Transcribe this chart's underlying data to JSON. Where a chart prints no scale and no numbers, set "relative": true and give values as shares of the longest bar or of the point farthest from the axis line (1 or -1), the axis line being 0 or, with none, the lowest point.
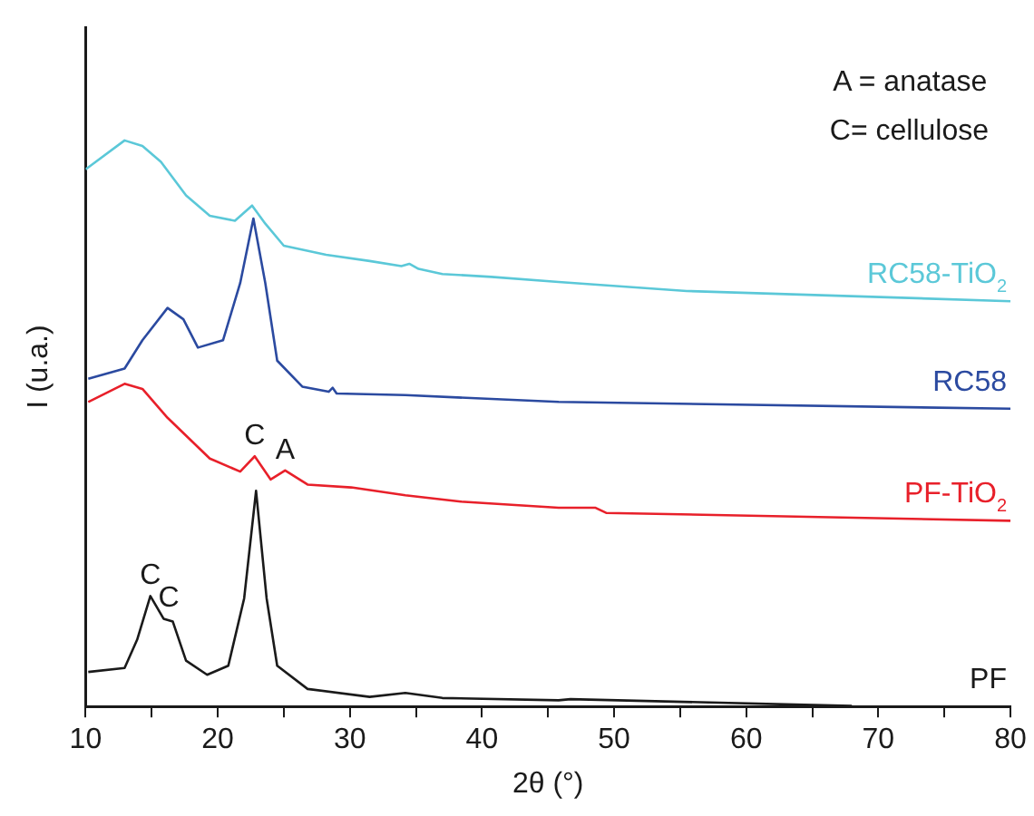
{
  "chart_data": {
    "type": "line",
    "relative": true,
    "xlabel": "2θ (°)",
    "ylabel": "I (u.a.)",
    "xlim": [
      10,
      80
    ],
    "xticks": [
      10,
      {
        "value": 15,
        "label": null
      },
      20,
      {
        "value": 25,
        "label": null
      },
      30,
      {
        "value": 35,
        "label": null
      },
      40,
      {
        "value": 45,
        "label": null
      },
      50,
      {
        "value": 55,
        "label": null
      },
      60,
      {
        "value": 65,
        "label": null
      },
      70,
      {
        "value": 75,
        "label": null
      },
      80
    ],
    "grid": false,
    "legend": false,
    "marker": "none",
    "line_style": "solid",
    "series": [
      {
        "name": "RC58-TiO$_{2}$",
        "color": "#5bc8d8",
        "x": [
          10,
          12.95,
          14.3,
          15.7,
          17.6,
          19.4,
          21.3,
          22.6,
          23.6,
          25.0,
          28.2,
          31.5,
          33.9,
          34.5,
          35.2,
          37.0,
          40.7,
          45.8,
          55.5,
          80
        ],
        "values": [
          0.949,
          1.0,
          0.99,
          0.962,
          0.903,
          0.867,
          0.858,
          0.885,
          0.853,
          0.814,
          0.798,
          0.787,
          0.778,
          0.782,
          0.773,
          0.764,
          0.759,
          0.75,
          0.734,
          0.716
        ]
      },
      {
        "name": "RC58",
        "color": "#2b4aa0",
        "x": [
          10.2,
          12.95,
          14.3,
          16.2,
          17.4,
          18.5,
          20.4,
          21.7,
          22.7,
          23.6,
          24.5,
          26.4,
          28.4,
          28.7,
          29.0,
          34.2,
          45.8,
          80
        ],
        "values": [
          0.579,
          0.597,
          0.647,
          0.704,
          0.684,
          0.634,
          0.647,
          0.748,
          0.862,
          0.748,
          0.611,
          0.565,
          0.556,
          0.563,
          0.553,
          0.55,
          0.538,
          0.526
        ]
      },
      {
        "name": "PF-TiO$_{2}$",
        "color": "#e8202a",
        "x": [
          10.2,
          12.95,
          14.3,
          16.2,
          19.4,
          21.7,
          22.8,
          24.0,
          25.1,
          26.8,
          30.1,
          34.2,
          38.4,
          45.8,
          48.6,
          49.4,
          80
        ],
        "values": [
          0.538,
          0.57,
          0.561,
          0.51,
          0.438,
          0.415,
          0.442,
          0.401,
          0.417,
          0.392,
          0.387,
          0.373,
          0.362,
          0.351,
          0.351,
          0.342,
          0.328
        ]
      },
      {
        "name": "PF",
        "color": "#1a1a1a",
        "x": [
          10.2,
          12.95,
          13.9,
          14.9,
          15.9,
          16.6,
          17.6,
          19.2,
          20.8,
          22.0,
          22.9,
          23.7,
          24.5,
          26.8,
          31.5,
          34.2,
          37.0,
          45.8,
          46.7,
          68
        ],
        "values": [
          0.061,
          0.068,
          0.118,
          0.195,
          0.155,
          0.15,
          0.081,
          0.056,
          0.072,
          0.191,
          0.381,
          0.191,
          0.072,
          0.031,
          0.017,
          0.024,
          0.015,
          0.011,
          0.013,
          0.001
        ]
      }
    ],
    "annotations": [
      "A = anatase",
      "C= cellulose",
      {
        "text": "C",
        "x": 14.9,
        "y": 0.195
      },
      {
        "text": "C",
        "x": 16.3,
        "y": 0.155
      },
      {
        "text": "C",
        "x": 22.8,
        "y": 0.442
      },
      {
        "text": "A",
        "x": 25.1,
        "y": 0.417
      }
    ]
  }
}
